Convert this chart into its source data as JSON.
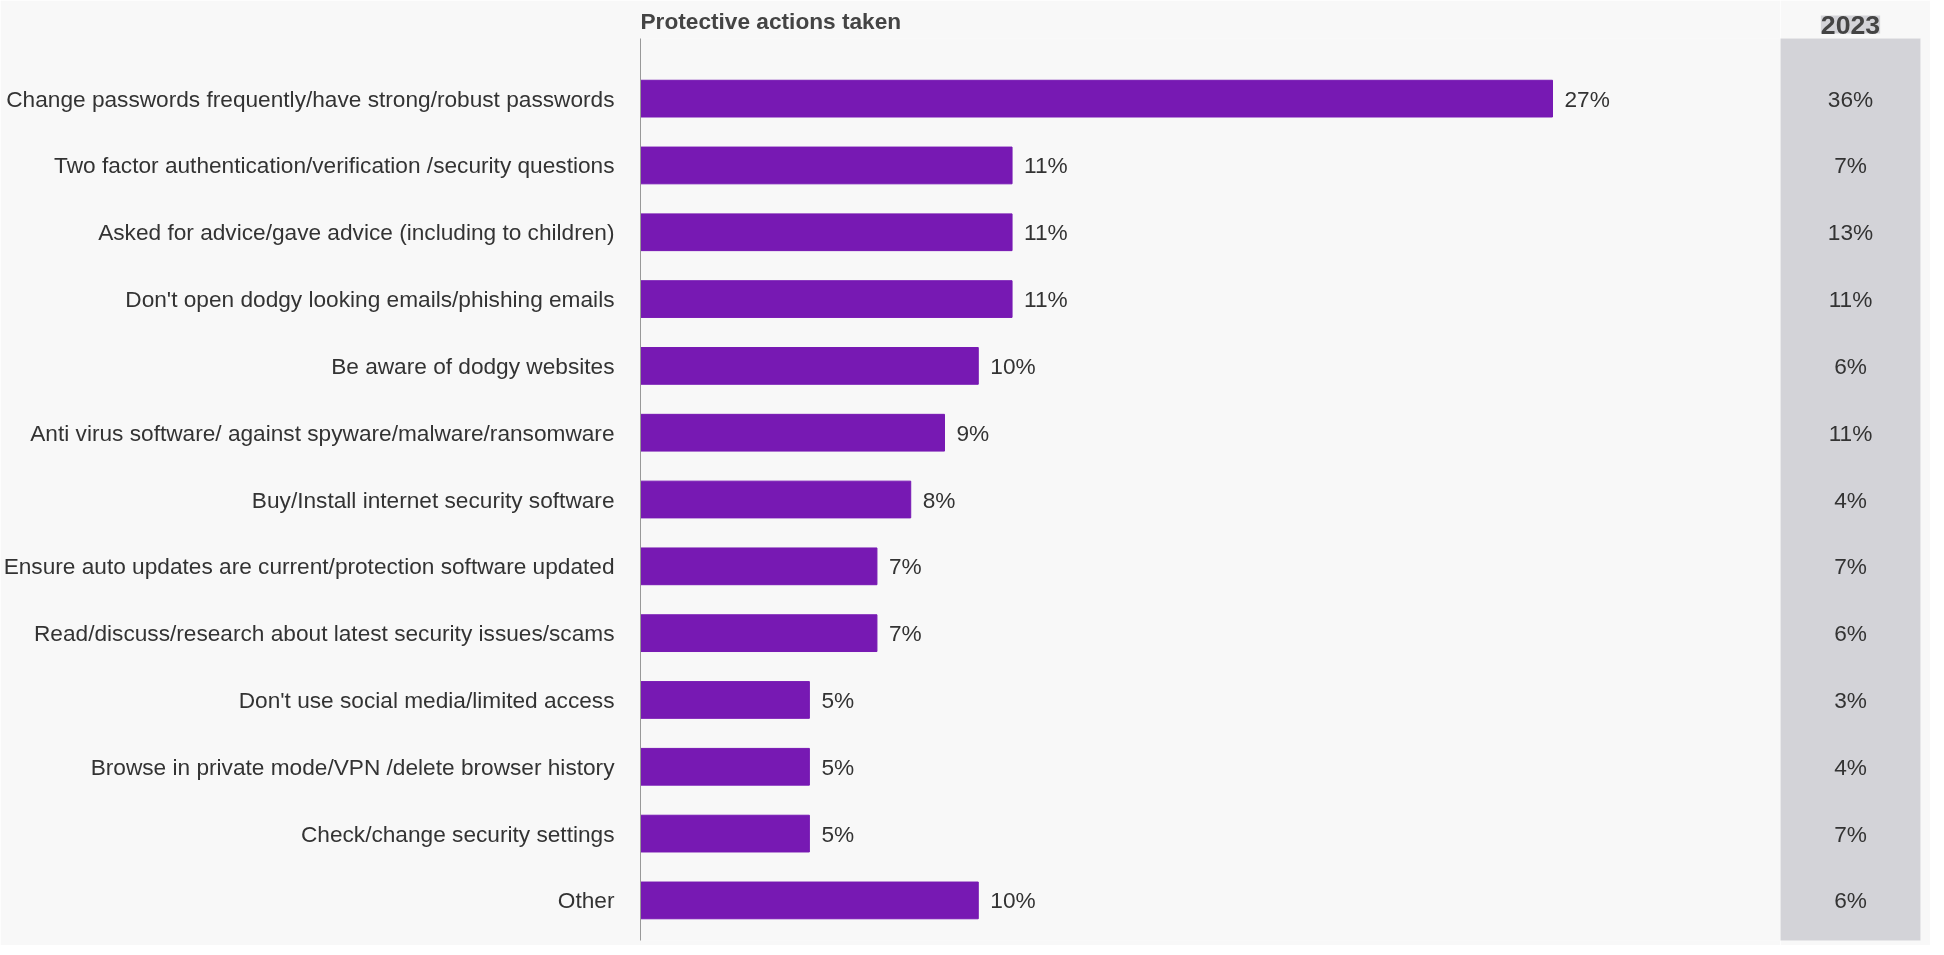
{
  "chart_data": {
    "type": "bar",
    "orientation": "horizontal",
    "title": "Protective actions taken",
    "categories": [
      "Change passwords frequently/have strong/robust passwords",
      "Two factor authentication/verification /security questions",
      "Asked for advice/gave advice (including to children)",
      "Don't open dodgy looking emails/phishing emails",
      "Be aware of dodgy websites",
      "Anti virus software/ against spyware/malware/ransomware",
      "Buy/Install internet security software",
      "Ensure auto updates are current/protection software updated",
      "Read/discuss/research about latest security issues/scams",
      "Don't use social media/limited access",
      "Browse in private mode/VPN /delete browser history",
      "Check/change security settings",
      "Other"
    ],
    "values": [
      27,
      11,
      11,
      11,
      10,
      9,
      8,
      7,
      7,
      5,
      5,
      5,
      10
    ],
    "color": "#7719b3",
    "value_labels": [
      "27%",
      "11%",
      "11%",
      "11%",
      "10%",
      "9%",
      "8%",
      "7%",
      "7%",
      "5%",
      "5%",
      "5%",
      "10%"
    ],
    "annotations": [
      "2023",
      "36%",
      "7%",
      "13%",
      "11%",
      "6%",
      "11%",
      "4%",
      "7%",
      "6%",
      "3%",
      "4%",
      "7%",
      "6%"
    ]
  }
}
